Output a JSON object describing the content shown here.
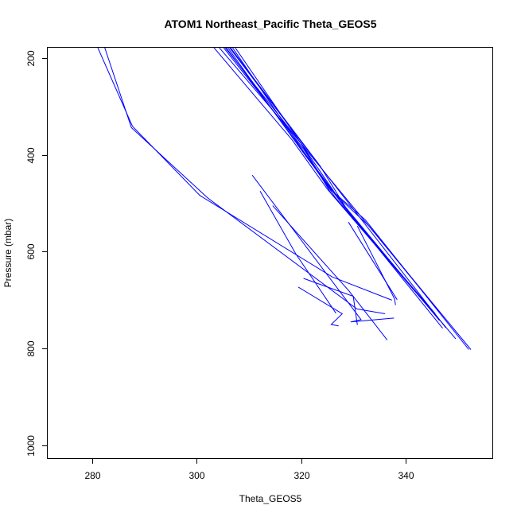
{
  "chart_data": {
    "type": "scatter",
    "title": "ATOM1 Northeast_Pacific Theta_GEOS5",
    "xlabel": "Theta_GEOS5",
    "ylabel": "Pressure (mbar)",
    "xlim": [
      271.5,
      356.5
    ],
    "ylim": [
      1026,
      179
    ],
    "y_reversed": true,
    "x_ticks": [
      280,
      300,
      320,
      340
    ],
    "y_ticks": [
      200,
      400,
      600,
      800,
      1000
    ],
    "grid": false,
    "legend": "none",
    "color": "#0000ff",
    "series": [
      {
        "x": [
          279.9,
          287.7,
          300.6,
          325.9,
          337.3
        ],
        "y": [
          150,
          341,
          484,
          652,
          700
        ]
      },
      {
        "x": [
          281.5,
          287.5,
          302.1,
          330.6,
          336.0
        ],
        "y": [
          150,
          344,
          489,
          718,
          728
        ]
      },
      {
        "x": [
          310.6,
          331.4,
          329.4,
          337.7
        ],
        "y": [
          442,
          740,
          745,
          737
        ]
      },
      {
        "x": [
          312.1,
          318.9,
          326.6
        ],
        "y": [
          475,
          604,
          727
        ]
      },
      {
        "x": [
          314.5,
          329.1,
          336.4
        ],
        "y": [
          505,
          681,
          782
        ]
      },
      {
        "x": [
          320.4,
          329.9,
          330.7
        ],
        "y": [
          655,
          692,
          751
        ]
      },
      {
        "x": [
          319.4,
          327.8,
          325.7,
          327.1
        ],
        "y": [
          673,
          728,
          750,
          753
        ]
      },
      {
        "x": [
          329.0,
          338.3
        ],
        "y": [
          539,
          699
        ]
      },
      {
        "x": [
          330.7,
          337.8,
          338.0
        ],
        "y": [
          547,
          697,
          710
        ]
      },
      {
        "x": [
          301.0,
          318.2,
          324.9,
          344.8
        ],
        "y": [
          150,
          369,
          470,
          721
        ]
      },
      {
        "x": [
          302.0,
          319.9,
          325.7,
          345.6
        ],
        "y": [
          150,
          376,
          480,
          728
        ]
      },
      {
        "x": [
          303.0,
          320.4,
          326.4,
          346.0
        ],
        "y": [
          150,
          388,
          487,
          735
        ]
      },
      {
        "x": [
          303.6,
          320.5,
          327.6,
          346.4
        ],
        "y": [
          150,
          395,
          497,
          742
        ]
      },
      {
        "x": [
          304.0,
          320.8,
          328.2,
          347.0
        ],
        "y": [
          150,
          402,
          507,
          758
        ]
      },
      {
        "x": [
          304.4,
          323.5,
          329.0,
          349.5
        ],
        "y": [
          150,
          422,
          518,
          780
        ]
      },
      {
        "x": [
          305.0,
          325.1,
          332.2,
          352.0
        ],
        "y": [
          150,
          467,
          534,
          802
        ]
      },
      {
        "x": [
          305.5,
          326.8,
          333.0,
          352.4
        ],
        "y": [
          150,
          485,
          548,
          802
        ]
      },
      {
        "x": [
          303.3,
          321.6,
          346.3
        ],
        "y": [
          150,
          399,
          723
        ]
      },
      {
        "x": [
          304.2,
          324.2,
          347.6
        ],
        "y": [
          150,
          433,
          757
        ]
      }
    ]
  }
}
